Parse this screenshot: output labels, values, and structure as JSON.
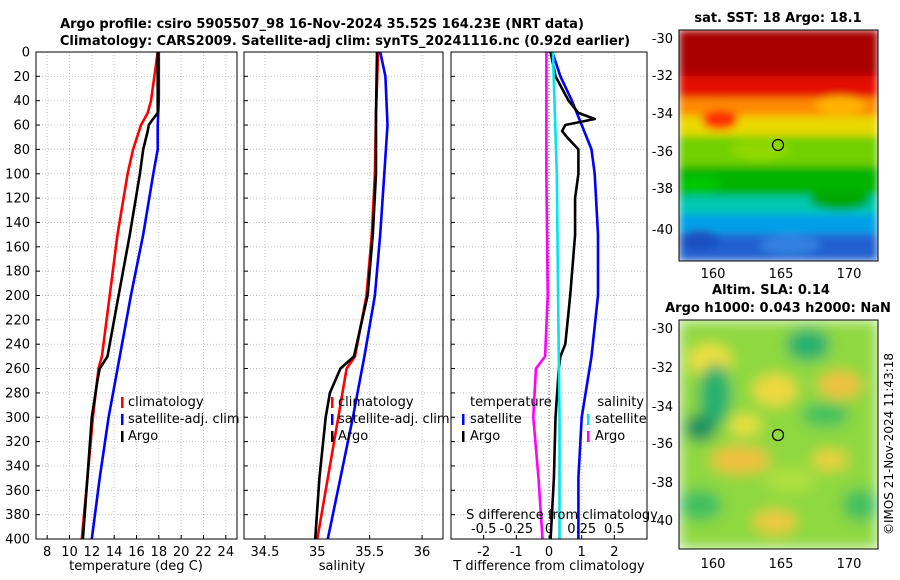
{
  "title": {
    "line1": "Argo profile: csiro 5905507_98 16-Nov-2024 35.52S 164.23E (NRT data)",
    "line2": "Climatology: CARS2009. Satellite-adj clim: synTS_20241116.nc (0.92d earlier)"
  },
  "colors": {
    "climatology": "#ff0000",
    "satellite": "#0000ff",
    "argo": "#000000",
    "sat_salinity": "#00e5ee",
    "argo_salinity": "#ff00ff"
  },
  "chart_data": [
    {
      "type": "line",
      "panel": "temperature",
      "xlabel": "temperature (deg C)",
      "xlim": [
        7,
        25
      ],
      "xticks": [
        "8",
        "10",
        "12",
        "14",
        "16",
        "18",
        "20",
        "22",
        "24"
      ],
      "ylim": [
        400,
        0
      ],
      "yticks": [
        "0",
        "20",
        "40",
        "60",
        "80",
        "100",
        "120",
        "140",
        "160",
        "180",
        "200",
        "220",
        "240",
        "260",
        "280",
        "300",
        "320",
        "340",
        "360",
        "380",
        "400"
      ],
      "legend": [
        "climatology",
        "satellite-adj. clim",
        "Argo"
      ],
      "series": [
        {
          "name": "climatology",
          "depth": [
            0,
            20,
            40,
            50,
            60,
            80,
            100,
            150,
            200,
            250,
            260,
            300,
            350,
            400
          ],
          "values": [
            17.9,
            17.6,
            17.3,
            17.0,
            16.4,
            15.7,
            15.2,
            14.3,
            13.6,
            12.9,
            12.6,
            12.1,
            11.6,
            11.1
          ]
        },
        {
          "name": "satellite-adj. clim",
          "depth": [
            0,
            20,
            40,
            60,
            80,
            100,
            150,
            200,
            250,
            300,
            350,
            400
          ],
          "values": [
            18.0,
            18.0,
            18.0,
            17.9,
            17.9,
            17.5,
            16.6,
            15.5,
            14.5,
            13.5,
            12.7,
            12.0
          ]
        },
        {
          "name": "Argo",
          "depth": [
            0,
            20,
            40,
            50,
            56,
            60,
            65,
            80,
            100,
            150,
            200,
            250,
            260,
            270,
            300,
            350,
            400
          ],
          "values": [
            17.9,
            17.9,
            17.9,
            17.9,
            17.4,
            17.1,
            17.0,
            16.6,
            16.3,
            15.4,
            14.4,
            13.4,
            12.7,
            12.5,
            12.0,
            11.6,
            11.2
          ]
        }
      ]
    },
    {
      "type": "line",
      "panel": "salinity",
      "xlabel": "salinity",
      "xlim": [
        34.3,
        36.2
      ],
      "xticks": [
        "34.5",
        "35",
        "35.5",
        "36"
      ],
      "ylim": [
        400,
        0
      ],
      "legend": [
        "climatology",
        "satellite-adj. clim",
        "Argo"
      ],
      "series": [
        {
          "name": "climatology",
          "depth": [
            0,
            50,
            100,
            150,
            200,
            250,
            260,
            300,
            350,
            400
          ],
          "values": [
            35.58,
            35.56,
            35.55,
            35.52,
            35.47,
            35.36,
            35.28,
            35.2,
            35.1,
            35.0
          ]
        },
        {
          "name": "satellite-adj. clim",
          "depth": [
            0,
            20,
            60,
            100,
            150,
            200,
            250,
            300,
            350,
            400
          ],
          "values": [
            35.6,
            35.65,
            35.67,
            35.64,
            35.6,
            35.55,
            35.45,
            35.34,
            35.22,
            35.1
          ]
        },
        {
          "name": "Argo",
          "depth": [
            0,
            50,
            100,
            150,
            200,
            250,
            260,
            280,
            300,
            350,
            400
          ],
          "values": [
            35.57,
            35.56,
            35.56,
            35.53,
            35.48,
            35.35,
            35.22,
            35.12,
            35.08,
            35.02,
            34.98
          ]
        }
      ]
    },
    {
      "type": "line",
      "panel": "difference from climatology",
      "xlabel": "T difference from climatology",
      "xlim": [
        -3,
        3
      ],
      "xticks": [
        "-2",
        "-1",
        "0",
        "1",
        "2"
      ],
      "top_label": "S difference from climatology",
      "top_ticks": [
        "-0.5",
        "-0.25",
        "0",
        "0.25",
        "0.5"
      ],
      "ylim": [
        400,
        0
      ],
      "legend_left_title": "temperature",
      "legend_left": [
        "satellite",
        "Argo"
      ],
      "legend_right_title": "salinity",
      "legend_right": [
        "satellite",
        "Argo"
      ],
      "series": [
        {
          "name": "temperature satellite",
          "depth": [
            0,
            20,
            40,
            60,
            80,
            100,
            150,
            200,
            250,
            300,
            350,
            400
          ],
          "values": [
            0.1,
            0.35,
            0.7,
            1.0,
            1.3,
            1.4,
            1.5,
            1.5,
            1.3,
            1.0,
            0.9,
            0.9
          ]
        },
        {
          "name": "temperature Argo",
          "depth": [
            0,
            20,
            40,
            50,
            55,
            60,
            65,
            70,
            80,
            100,
            120,
            150,
            200,
            240,
            250,
            260,
            300,
            350,
            400
          ],
          "values": [
            0.05,
            0.2,
            0.6,
            0.9,
            1.4,
            0.5,
            0.4,
            0.55,
            0.9,
            0.9,
            0.8,
            0.8,
            0.65,
            0.5,
            0.35,
            0.3,
            0.2,
            0.15,
            0.05
          ]
        },
        {
          "name": "salinity satellite",
          "depth": [
            0,
            100,
            200,
            300,
            400
          ],
          "values": [
            0.03,
            0.06,
            0.07,
            0.08,
            0.08
          ]
        },
        {
          "name": "salinity Argo",
          "depth": [
            0,
            100,
            200,
            250,
            260,
            300,
            350,
            400
          ],
          "values": [
            -0.02,
            -0.02,
            -0.01,
            -0.03,
            -0.1,
            -0.12,
            -0.08,
            -0.05
          ]
        }
      ]
    }
  ],
  "maps": {
    "sst": {
      "title": "sat. SST: 18 Argo: 18.1",
      "xticks": [
        "160",
        "165",
        "170"
      ],
      "yticks": [
        "-30",
        "-32",
        "-34",
        "-36",
        "-38",
        "-40"
      ]
    },
    "sla": {
      "title1": "Altim. SLA: 0.14",
      "title2": "Argo h1000: 0.043 h2000: NaN",
      "xticks": [
        "160",
        "165",
        "170"
      ],
      "yticks": [
        "-30",
        "-32",
        "-34",
        "-36",
        "-38",
        "-40"
      ]
    }
  },
  "footer": {
    "credit": "©IMOS 21-Nov-2024 11:43:18"
  }
}
